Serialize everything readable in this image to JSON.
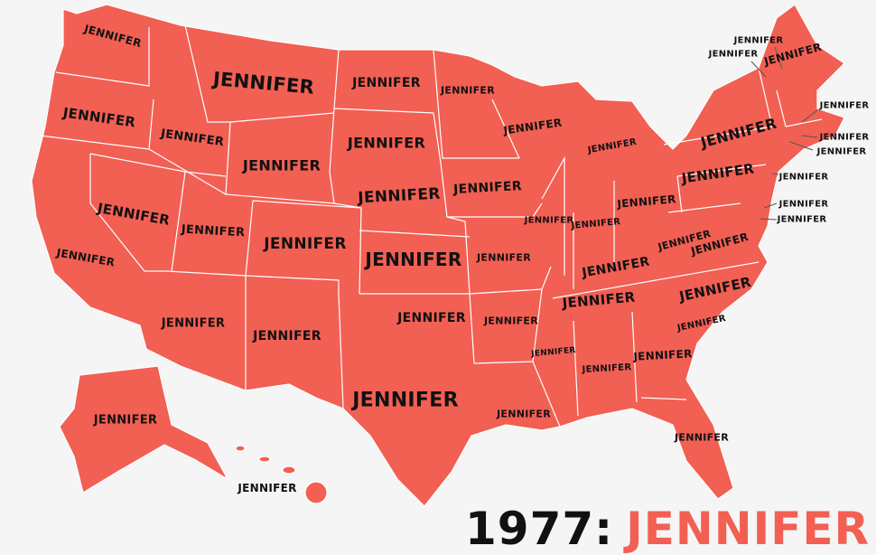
{
  "colors": {
    "state_fill": "#f25f53",
    "border": "#ffffff",
    "background": "#f4f5f4",
    "label": "#111111"
  },
  "title": {
    "year": "1977:",
    "name": "JENNIFER"
  },
  "states": [
    {
      "state": "WA",
      "name": "JENNIFER"
    },
    {
      "state": "OR",
      "name": "JENNIFER"
    },
    {
      "state": "CA",
      "name": "JENNIFER"
    },
    {
      "state": "ID",
      "name": "JENNIFER"
    },
    {
      "state": "NV",
      "name": "JENNIFER"
    },
    {
      "state": "MT",
      "name": "JENNIFER"
    },
    {
      "state": "WY",
      "name": "JENNIFER"
    },
    {
      "state": "UT",
      "name": "JENNIFER"
    },
    {
      "state": "AZ",
      "name": "JENNIFER"
    },
    {
      "state": "CO",
      "name": "JENNIFER"
    },
    {
      "state": "NM",
      "name": "JENNIFER"
    },
    {
      "state": "ND",
      "name": "JENNIFER"
    },
    {
      "state": "SD",
      "name": "JENNIFER"
    },
    {
      "state": "NE",
      "name": "JENNIFER"
    },
    {
      "state": "KS",
      "name": "JENNIFER"
    },
    {
      "state": "OK",
      "name": "JENNIFER"
    },
    {
      "state": "TX",
      "name": "JENNIFER"
    },
    {
      "state": "MN",
      "name": "JENNIFER"
    },
    {
      "state": "IA",
      "name": "JENNIFER"
    },
    {
      "state": "MO",
      "name": "JENNIFER"
    },
    {
      "state": "AR",
      "name": "JENNIFER"
    },
    {
      "state": "LA",
      "name": "JENNIFER"
    },
    {
      "state": "WI",
      "name": "JENNIFER"
    },
    {
      "state": "IL",
      "name": "JENNIFER"
    },
    {
      "state": "MI",
      "name": "JENNIFER"
    },
    {
      "state": "IN",
      "name": "JENNIFER"
    },
    {
      "state": "OH",
      "name": "JENNIFER"
    },
    {
      "state": "KY",
      "name": "JENNIFER"
    },
    {
      "state": "TN",
      "name": "JENNIFER"
    },
    {
      "state": "MS",
      "name": "JENNIFER"
    },
    {
      "state": "AL",
      "name": "JENNIFER"
    },
    {
      "state": "GA",
      "name": "JENNIFER"
    },
    {
      "state": "FL",
      "name": "JENNIFER"
    },
    {
      "state": "SC",
      "name": "JENNIFER"
    },
    {
      "state": "NC",
      "name": "JENNIFER"
    },
    {
      "state": "VA",
      "name": "JENNIFER"
    },
    {
      "state": "WV",
      "name": "JENNIFER"
    },
    {
      "state": "PA",
      "name": "JENNIFER"
    },
    {
      "state": "NY",
      "name": "JENNIFER"
    },
    {
      "state": "ME",
      "name": "JENNIFER"
    },
    {
      "state": "NH",
      "name": "JENNIFER"
    },
    {
      "state": "VT",
      "name": "JENNIFER"
    },
    {
      "state": "MA",
      "name": "JENNIFER"
    },
    {
      "state": "RI",
      "name": "JENNIFER"
    },
    {
      "state": "CT",
      "name": "JENNIFER"
    },
    {
      "state": "NJ",
      "name": "JENNIFER"
    },
    {
      "state": "DE",
      "name": "JENNIFER"
    },
    {
      "state": "MD",
      "name": "JENNIFER"
    },
    {
      "state": "AK",
      "name": "JENNIFER"
    },
    {
      "state": "HI",
      "name": "JENNIFER"
    }
  ]
}
